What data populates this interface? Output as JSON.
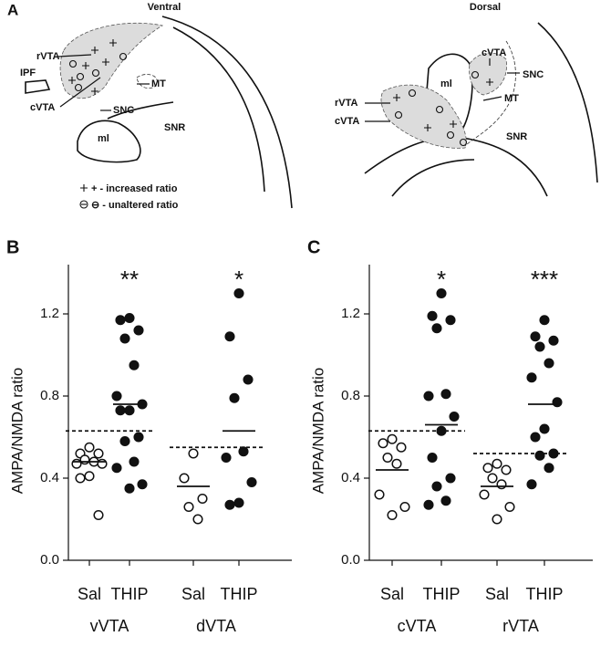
{
  "diagram": {
    "panel": "A",
    "ventral": {
      "title": "Ventral",
      "labels": [
        "rVTA",
        "IPF",
        "cVTA",
        "MT",
        "SNC",
        "SNR",
        "ml"
      ]
    },
    "dorsal": {
      "title": "Dorsal",
      "labels": [
        "cVTA",
        "SNC",
        "ml",
        "MT",
        "rVTA",
        "cVTA",
        "SNR"
      ]
    },
    "legend": [
      "+ - increased ratio",
      "⊖ - unaltered ratio"
    ]
  },
  "chart_data": [
    {
      "type": "dot",
      "panel": "B",
      "ylabel": "AMPA/NMDA ratio",
      "ylim": [
        0,
        1.44
      ],
      "yticks": [
        {
          "value": 0,
          "label": "0.0"
        },
        0.4,
        0.8,
        1.2
      ],
      "groups": [
        {
          "name": "vVTA",
          "significance": "**",
          "reference": 0.63,
          "series": [
            {
              "name": "Sal",
              "marker": "open",
              "mean": 0.48,
              "values": [
                0.55,
                0.52,
                0.52,
                0.49,
                0.48,
                0.47,
                0.47,
                0.41,
                0.4,
                0.22
              ]
            },
            {
              "name": "THIP",
              "marker": "filled",
              "mean": 0.76,
              "values": [
                1.18,
                1.17,
                1.12,
                1.08,
                0.95,
                0.8,
                0.76,
                0.73,
                0.73,
                0.6,
                0.58,
                0.48,
                0.45,
                0.37,
                0.35
              ]
            }
          ]
        },
        {
          "name": "dVTA",
          "significance": "*",
          "reference": 0.55,
          "series": [
            {
              "name": "Sal",
              "marker": "open",
              "mean": 0.36,
              "values": [
                0.52,
                0.4,
                0.3,
                0.26,
                0.2
              ]
            },
            {
              "name": "THIP",
              "marker": "filled",
              "mean": 0.63,
              "values": [
                1.3,
                1.09,
                0.88,
                0.79,
                0.53,
                0.5,
                0.38,
                0.28,
                0.27
              ]
            }
          ]
        }
      ]
    },
    {
      "type": "dot",
      "panel": "C",
      "ylabel": "AMPA/NMDA ratio",
      "ylim": [
        0,
        1.44
      ],
      "yticks": [
        {
          "value": 0,
          "label": "0.0"
        },
        0.4,
        0.8,
        1.2
      ],
      "groups": [
        {
          "name": "cVTA",
          "significance": "*",
          "reference": 0.63,
          "series": [
            {
              "name": "Sal",
              "marker": "open",
              "mean": 0.44,
              "values": [
                0.59,
                0.57,
                0.55,
                0.5,
                0.47,
                0.32,
                0.26,
                0.22
              ]
            },
            {
              "name": "THIP",
              "marker": "filled",
              "mean": 0.66,
              "values": [
                1.3,
                1.19,
                1.17,
                1.13,
                0.81,
                0.8,
                0.7,
                0.63,
                0.5,
                0.4,
                0.36,
                0.29,
                0.27
              ]
            }
          ]
        },
        {
          "name": "rVTA",
          "significance": "***",
          "reference": 0.52,
          "series": [
            {
              "name": "Sal",
              "marker": "open",
              "mean": 0.36,
              "values": [
                0.47,
                0.45,
                0.44,
                0.4,
                0.37,
                0.32,
                0.26,
                0.2
              ]
            },
            {
              "name": "THIP",
              "marker": "filled",
              "mean": 0.76,
              "values": [
                1.17,
                1.09,
                1.07,
                1.04,
                0.96,
                0.89,
                0.77,
                0.64,
                0.6,
                0.52,
                0.51,
                0.45,
                0.37
              ]
            }
          ]
        }
      ]
    }
  ]
}
